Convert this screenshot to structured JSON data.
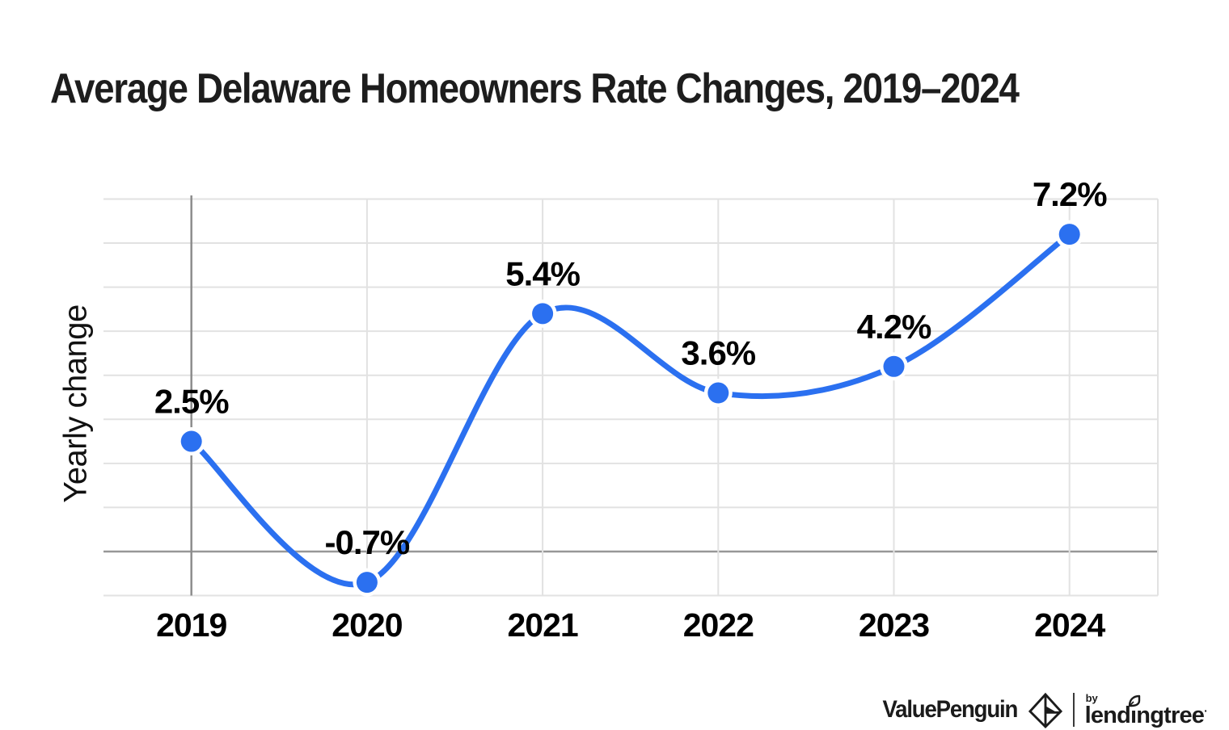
{
  "title": "Average Delaware Homeowners Rate Changes, 2019–2024",
  "chart_data": {
    "type": "line",
    "title": "Average Delaware Homeowners Rate Changes, 2019–2024",
    "categories": [
      "2019",
      "2020",
      "2021",
      "2022",
      "2023",
      "2024"
    ],
    "series": [
      {
        "name": "Yearly change",
        "values": [
          2.5,
          -0.7,
          5.4,
          3.6,
          4.2,
          7.2
        ]
      }
    ],
    "point_labels": [
      "2.5%",
      "-0.7%",
      "5.4%",
      "3.6%",
      "4.2%",
      "7.2%"
    ],
    "xlabel": "",
    "ylabel": "Yearly change",
    "ylim": [
      -1,
      8
    ],
    "y_gridline_step": 1,
    "zero_baseline": 0,
    "grid": true,
    "legend": "none",
    "curve": "smooth",
    "colors": {
      "line": "#2b70f0",
      "marker": "#2b70f0",
      "marker_halo": "#ffffff",
      "gridline": "#e2e2e2",
      "zero_line": "#979797",
      "axis_line": "#8c8c8c",
      "label_text": "#000000"
    }
  },
  "footer": {
    "brand": "ValuePenguin",
    "by_label": "by",
    "partner_name": "lendingtree",
    "partner_pieces": [
      "lend",
      "ı",
      "ngtree"
    ],
    "trademark_dot": "·",
    "logo_color": "#1b1b1b"
  }
}
